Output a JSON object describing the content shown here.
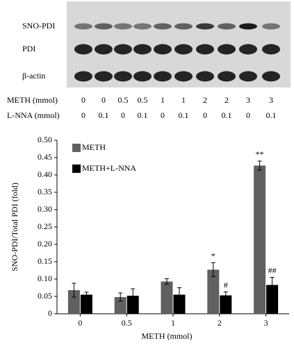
{
  "blot": {
    "rows": [
      "SNO-PDI",
      "PDI",
      "β-actin"
    ],
    "conditions": [
      {
        "label": "METH (mmol)",
        "values": [
          0,
          0,
          0.5,
          0.5,
          1,
          1,
          2,
          2,
          3,
          3
        ]
      },
      {
        "label": "L-NNA (mmol)",
        "values": [
          0,
          0.1,
          0,
          0.1,
          0,
          0.1,
          0,
          0.1,
          0,
          0.1
        ]
      }
    ]
  },
  "chart_data": {
    "type": "bar",
    "xlabel": "METH (mmol)",
    "ylabel": "SNO-PDI/Total PDI (fold)",
    "categories": [
      "0",
      "0.5",
      "1",
      "2",
      "3"
    ],
    "series": [
      {
        "name": "METH",
        "color": "#606060",
        "values": [
          0.068,
          0.048,
          0.093,
          0.127,
          0.427
        ],
        "errors": [
          0.02,
          0.012,
          0.008,
          0.02,
          0.013
        ],
        "annotations": [
          null,
          null,
          null,
          "*",
          "**"
        ]
      },
      {
        "name": "METH+L-NNA",
        "color": "#000000",
        "values": [
          0.055,
          0.052,
          0.055,
          0.053,
          0.083
        ],
        "errors": [
          0.007,
          0.02,
          0.02,
          0.01,
          0.022
        ],
        "annotations": [
          null,
          null,
          null,
          "#",
          "##"
        ]
      }
    ],
    "ylim": [
      0,
      0.5
    ],
    "yticks": [
      0,
      0.05,
      {
        "value": 0.1,
        "label": "0.10"
      },
      0.15,
      {
        "value": 0.2,
        "label": "0.20"
      },
      0.25,
      {
        "value": 0.3,
        "label": "0.30"
      },
      0.35,
      {
        "value": 0.4,
        "label": "0.40"
      },
      0.45,
      {
        "value": 0.5,
        "label": "0.50"
      }
    ],
    "legend": "upper left",
    "grid": false
  }
}
